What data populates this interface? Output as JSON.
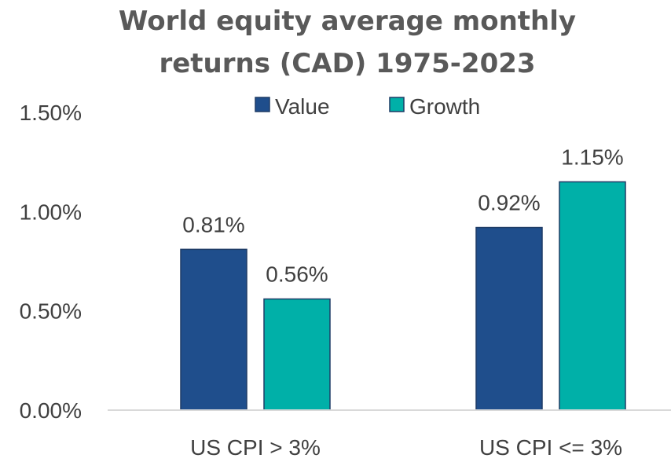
{
  "chart_data": {
    "type": "bar",
    "title_lines": [
      "World equity average monthly",
      "returns (CAD) 1975-2023"
    ],
    "categories": [
      "US CPI > 3%",
      "US CPI <= 3%"
    ],
    "series": [
      {
        "name": "Value",
        "values": [
          0.81,
          0.92
        ],
        "labels": [
          "0.81%",
          "0.92%"
        ],
        "color": "#1f4e8c"
      },
      {
        "name": "Growth",
        "values": [
          0.56,
          1.15
        ],
        "labels": [
          "0.56%",
          "1.15%"
        ],
        "color": "#00b0a8"
      }
    ],
    "yticks": [
      0.0,
      0.5,
      1.0,
      1.5
    ],
    "ytick_labels": [
      "0.00%",
      "0.50%",
      "1.00%",
      "1.50%"
    ],
    "ylim": [
      0,
      1.5
    ],
    "legend_position": "top-center",
    "grid": false,
    "bar_outline": "#1f3c66",
    "axis_color": "#d9d9d9"
  }
}
